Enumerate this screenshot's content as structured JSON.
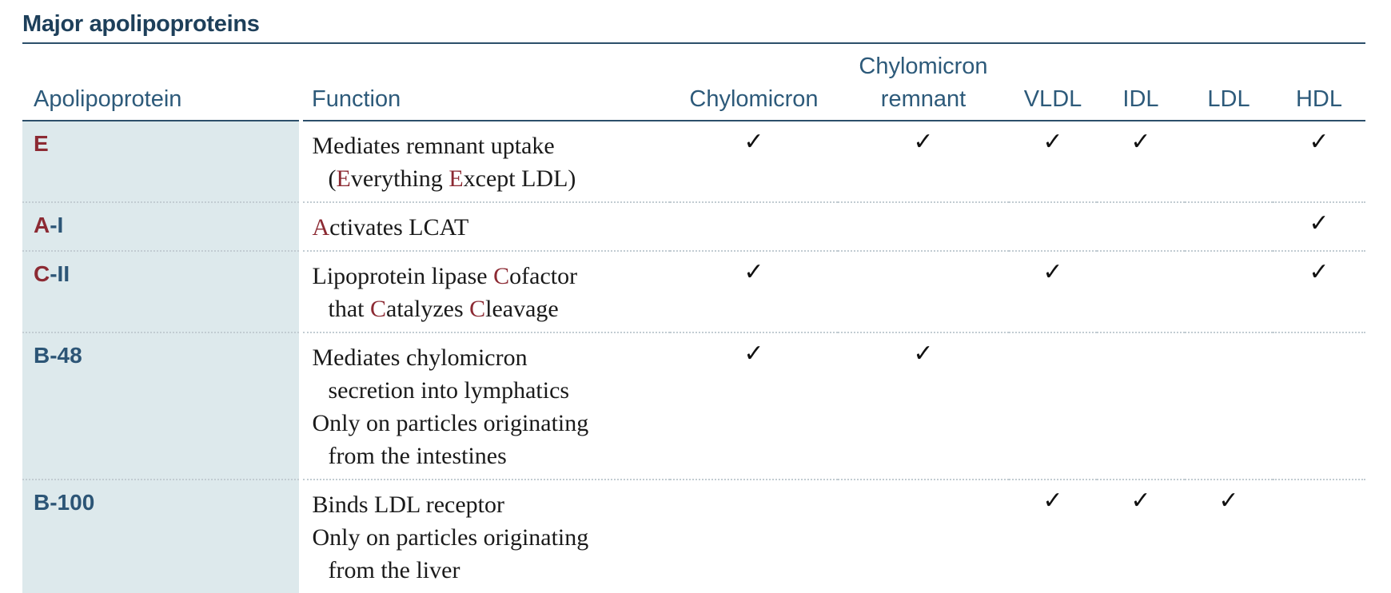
{
  "title": "Major apolipoproteins",
  "headers": {
    "apolipoprotein": "Apolipoprotein",
    "function": "Function",
    "chylomicron": "Chylomicron",
    "chylomicron_remnant_1": "Chylomicron",
    "chylomicron_remnant_2": "remnant",
    "vldl": "VLDL",
    "idl": "IDL",
    "ldl": "LDL",
    "hdl": "HDL"
  },
  "check_mark": "✓",
  "rows": [
    {
      "apo": "E",
      "function_lines": [
        [
          {
            "t": "Mediates remnant uptake"
          }
        ],
        [
          {
            "t": "("
          },
          {
            "t": "E",
            "hl": true
          },
          {
            "t": "verything "
          },
          {
            "t": "E",
            "hl": true
          },
          {
            "t": "xcept LDL)"
          }
        ]
      ],
      "checks": [
        true,
        true,
        true,
        true,
        false,
        true
      ]
    },
    {
      "apo_hl": "A",
      "apo_rest": "-I",
      "function_lines": [
        [
          {
            "t": "A",
            "hl": true
          },
          {
            "t": "ctivates LCAT"
          }
        ]
      ],
      "checks": [
        false,
        false,
        false,
        false,
        false,
        true
      ]
    },
    {
      "apo_hl": "C",
      "apo_rest": "-II",
      "function_lines": [
        [
          {
            "t": "Lipoprotein lipase "
          },
          {
            "t": "C",
            "hl": true
          },
          {
            "t": "ofactor"
          }
        ],
        [
          {
            "t": "that "
          },
          {
            "t": "C",
            "hl": true
          },
          {
            "t": "atalyzes "
          },
          {
            "t": "C",
            "hl": true
          },
          {
            "t": "leavage"
          }
        ]
      ],
      "checks": [
        true,
        false,
        true,
        false,
        false,
        true
      ]
    },
    {
      "apo_plain": "B-48",
      "function_lines": [
        [
          {
            "t": "Mediates chylomicron"
          }
        ],
        [
          {
            "t": "secretion into lymphatics"
          }
        ],
        [
          {
            "t": "Only on particles originating"
          }
        ],
        [
          {
            "t": "from the intestines"
          }
        ]
      ],
      "checks": [
        true,
        true,
        false,
        false,
        false,
        false
      ]
    },
    {
      "apo_plain": "B-100",
      "function_lines": [
        [
          {
            "t": "Binds LDL receptor"
          }
        ],
        [
          {
            "t": "Only on particles originating"
          }
        ],
        [
          {
            "t": "from the liver"
          }
        ]
      ],
      "checks": [
        false,
        false,
        true,
        true,
        true,
        false
      ]
    }
  ]
}
